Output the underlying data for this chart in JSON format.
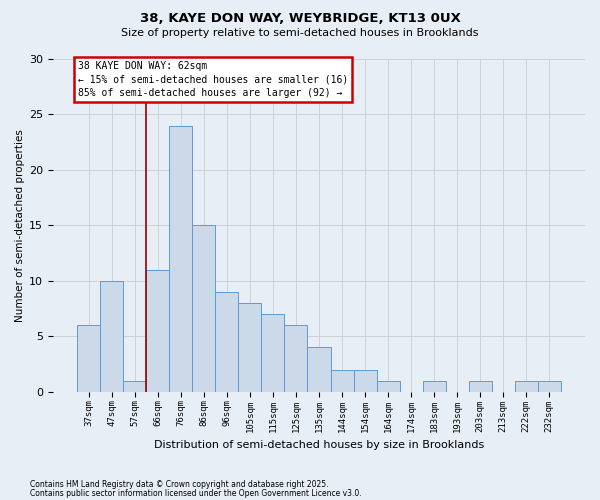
{
  "title1": "38, KAYE DON WAY, WEYBRIDGE, KT13 0UX",
  "title2": "Size of property relative to semi-detached houses in Brooklands",
  "xlabel": "Distribution of semi-detached houses by size in Brooklands",
  "ylabel": "Number of semi-detached properties",
  "categories": [
    "37sqm",
    "47sqm",
    "57sqm",
    "66sqm",
    "76sqm",
    "86sqm",
    "96sqm",
    "105sqm",
    "115sqm",
    "125sqm",
    "135sqm",
    "144sqm",
    "154sqm",
    "164sqm",
    "174sqm",
    "183sqm",
    "193sqm",
    "203sqm",
    "213sqm",
    "222sqm",
    "232sqm"
  ],
  "bar_heights": [
    6,
    10,
    1,
    11,
    24,
    15,
    9,
    8,
    7,
    6,
    4,
    2,
    2,
    1,
    0,
    1,
    0,
    1,
    0,
    1,
    1
  ],
  "bar_color": "#ccd9e8",
  "bar_edge_color": "#5b9bd5",
  "grid_color": "#cccccc",
  "bg_color": "#e8eef5",
  "vline_color": "#990000",
  "annotation_title": "38 KAYE DON WAY: 62sqm",
  "annotation_line2": "← 15% of semi-detached houses are smaller (16)",
  "annotation_line3": "85% of semi-detached houses are larger (92) →",
  "annotation_box_color": "#ffffff",
  "annotation_border_color": "#cc0000",
  "footer1": "Contains HM Land Registry data © Crown copyright and database right 2025.",
  "footer2": "Contains public sector information licensed under the Open Government Licence v3.0.",
  "ylim": [
    0,
    30
  ],
  "yticks": [
    0,
    5,
    10,
    15,
    20,
    25,
    30
  ],
  "vline_pos": 2.5
}
